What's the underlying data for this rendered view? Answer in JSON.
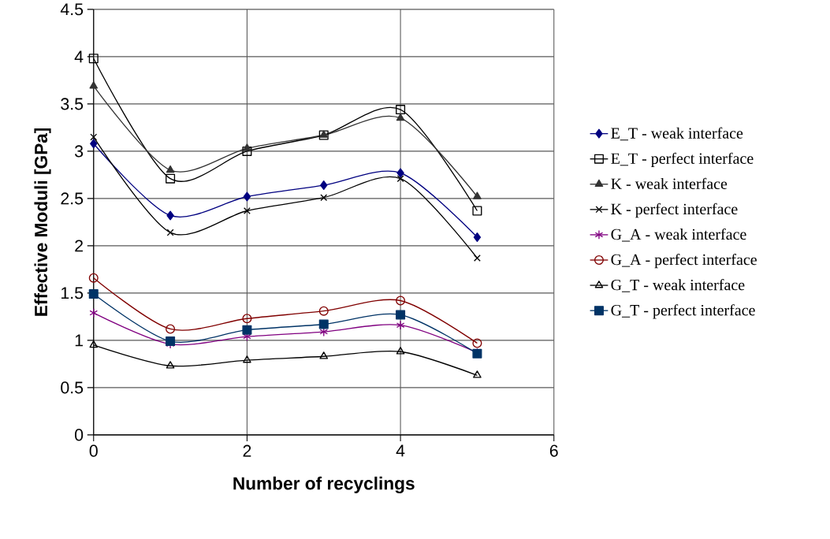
{
  "chart_data": {
    "type": "line",
    "xlabel": "Number of recyclings",
    "ylabel": "Effective Moduli [GPa]",
    "x": [
      0,
      1,
      2,
      3,
      4,
      5
    ],
    "xlim": [
      0,
      6
    ],
    "xticks": [
      0,
      2,
      4,
      6
    ],
    "ylim": [
      0,
      4.5
    ],
    "yticks": [
      0,
      0.5,
      1,
      1.5,
      2,
      2.5,
      3,
      3.5,
      4,
      4.5
    ],
    "grid": true,
    "legend": "right",
    "series": [
      {
        "name": "E_T - weak interface",
        "color": "#000080",
        "marker": "diamond",
        "values": [
          3.08,
          2.32,
          2.52,
          2.64,
          2.77,
          2.09
        ]
      },
      {
        "name": "E_T - perfect interface",
        "color": "#000000",
        "marker": "square",
        "values": [
          3.98,
          2.71,
          3.0,
          3.17,
          3.44,
          2.37
        ]
      },
      {
        "name": "K - weak interface",
        "color": "#333333",
        "marker": "triangle",
        "values": [
          3.69,
          2.8,
          3.03,
          3.17,
          3.35,
          2.52
        ]
      },
      {
        "name": "K - perfect interface",
        "color": "#000000",
        "marker": "cross",
        "values": [
          3.15,
          2.14,
          2.37,
          2.51,
          2.71,
          1.87
        ]
      },
      {
        "name": "G_A - weak interface",
        "color": "#800080",
        "marker": "cross",
        "values": [
          1.29,
          0.96,
          1.04,
          1.09,
          1.16,
          0.87
        ]
      },
      {
        "name": "G_A - perfect interface",
        "color": "#800000",
        "marker": "circle",
        "values": [
          1.66,
          1.12,
          1.23,
          1.31,
          1.42,
          0.97
        ]
      },
      {
        "name": "G_T - weak interface",
        "color": "#000000",
        "marker": "triangle",
        "values": [
          0.95,
          0.73,
          0.79,
          0.83,
          0.88,
          0.63
        ]
      },
      {
        "name": "G_T - perfect interface",
        "color": "#003366",
        "marker": "square",
        "values": [
          1.49,
          0.99,
          1.11,
          1.17,
          1.27,
          0.86
        ]
      }
    ]
  }
}
